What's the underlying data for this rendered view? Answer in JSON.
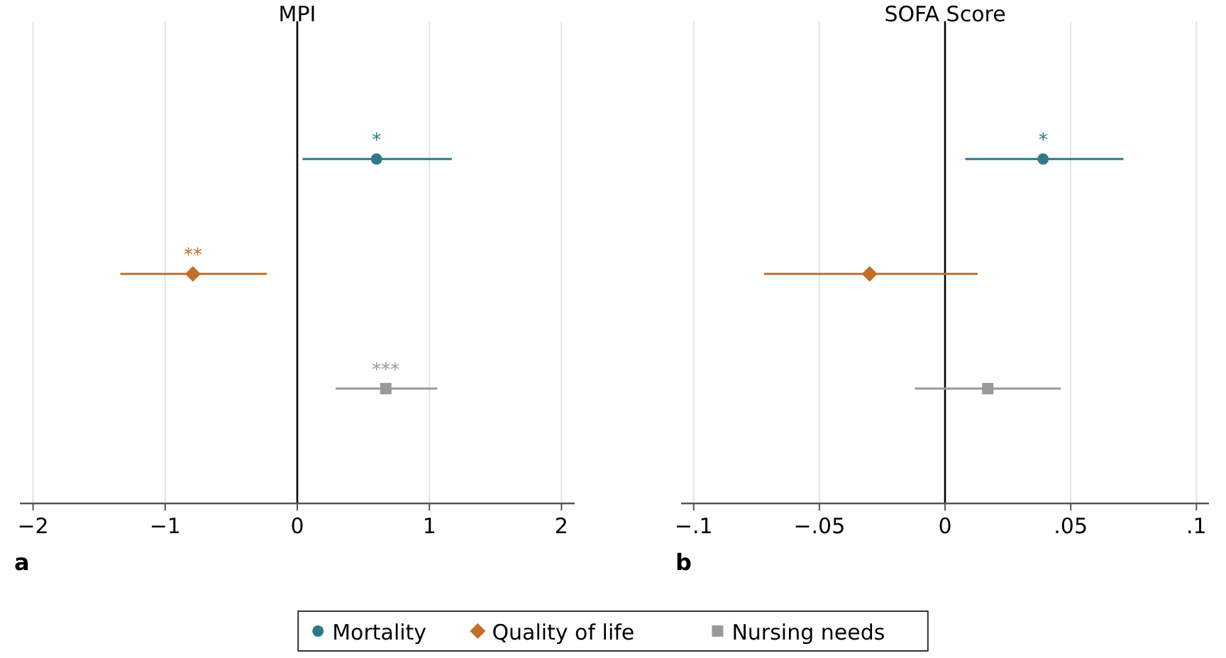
{
  "chart_data": [
    {
      "type": "scatter",
      "orientation": "horizontal",
      "title": "MPI",
      "categories": [
        null,
        null,
        null
      ],
      "xlim": [
        -2.1,
        2.1
      ],
      "xticks": [
        {
          "value": -2,
          "label": "−2"
        },
        {
          "value": -1,
          "label": "−1"
        },
        0,
        1,
        2
      ],
      "grid": "x",
      "legend": "bottom",
      "annotations": [
        "a"
      ],
      "ref_lines": [
        {
          "axis": "x",
          "value": 0,
          "color": "#000000"
        }
      ],
      "series": [
        {
          "name": "Mortality",
          "color": "#2e7a8a",
          "marker": "circle",
          "values": [
            0.6,
            null,
            null
          ],
          "errors": [
            [
              0.04,
              1.17
            ],
            null,
            null
          ],
          "value_labels": [
            "*",
            null,
            null
          ]
        },
        {
          "name": "Quality of life",
          "color": "#c0702a",
          "marker": "diamond",
          "values": [
            null,
            -0.79,
            null
          ],
          "errors": [
            null,
            [
              -1.34,
              -0.23
            ],
            null
          ],
          "value_labels": [
            null,
            "**",
            null
          ]
        },
        {
          "name": "Nursing needs",
          "color": "#999999",
          "marker": "square",
          "values": [
            null,
            null,
            0.67
          ],
          "errors": [
            null,
            null,
            [
              0.29,
              1.06
            ]
          ],
          "value_labels": [
            null,
            null,
            "***"
          ]
        }
      ]
    },
    {
      "type": "scatter",
      "orientation": "horizontal",
      "title": "SOFA Score",
      "categories": [
        null,
        null,
        null
      ],
      "xlim": [
        -0.105,
        0.105
      ],
      "xticks": [
        {
          "value": -0.1,
          "label": "−.1"
        },
        {
          "value": -0.05,
          "label": "−.05"
        },
        0,
        {
          "value": 0.05,
          "label": ".05"
        },
        {
          "value": 0.1,
          "label": ".1"
        }
      ],
      "grid": "x",
      "annotations": [
        "b"
      ],
      "ref_lines": [
        {
          "axis": "x",
          "value": 0,
          "color": "#000000"
        }
      ],
      "series": [
        {
          "color": "#2e7a8a",
          "marker": "circle",
          "values": [
            0.039,
            null,
            null
          ],
          "errors": [
            [
              0.008,
              0.071
            ],
            null,
            null
          ],
          "value_labels": [
            "*",
            null,
            null
          ]
        },
        {
          "color": "#c0702a",
          "marker": "diamond",
          "values": [
            null,
            -0.03,
            null
          ],
          "errors": [
            null,
            [
              -0.072,
              0.013
            ],
            null
          ],
          "value_labels": [
            null,
            null,
            null
          ]
        },
        {
          "color": "#999999",
          "marker": "square",
          "values": [
            null,
            null,
            0.017
          ],
          "errors": [
            null,
            null,
            [
              -0.012,
              0.046
            ]
          ],
          "value_labels": [
            null,
            null,
            null
          ]
        }
      ]
    }
  ]
}
